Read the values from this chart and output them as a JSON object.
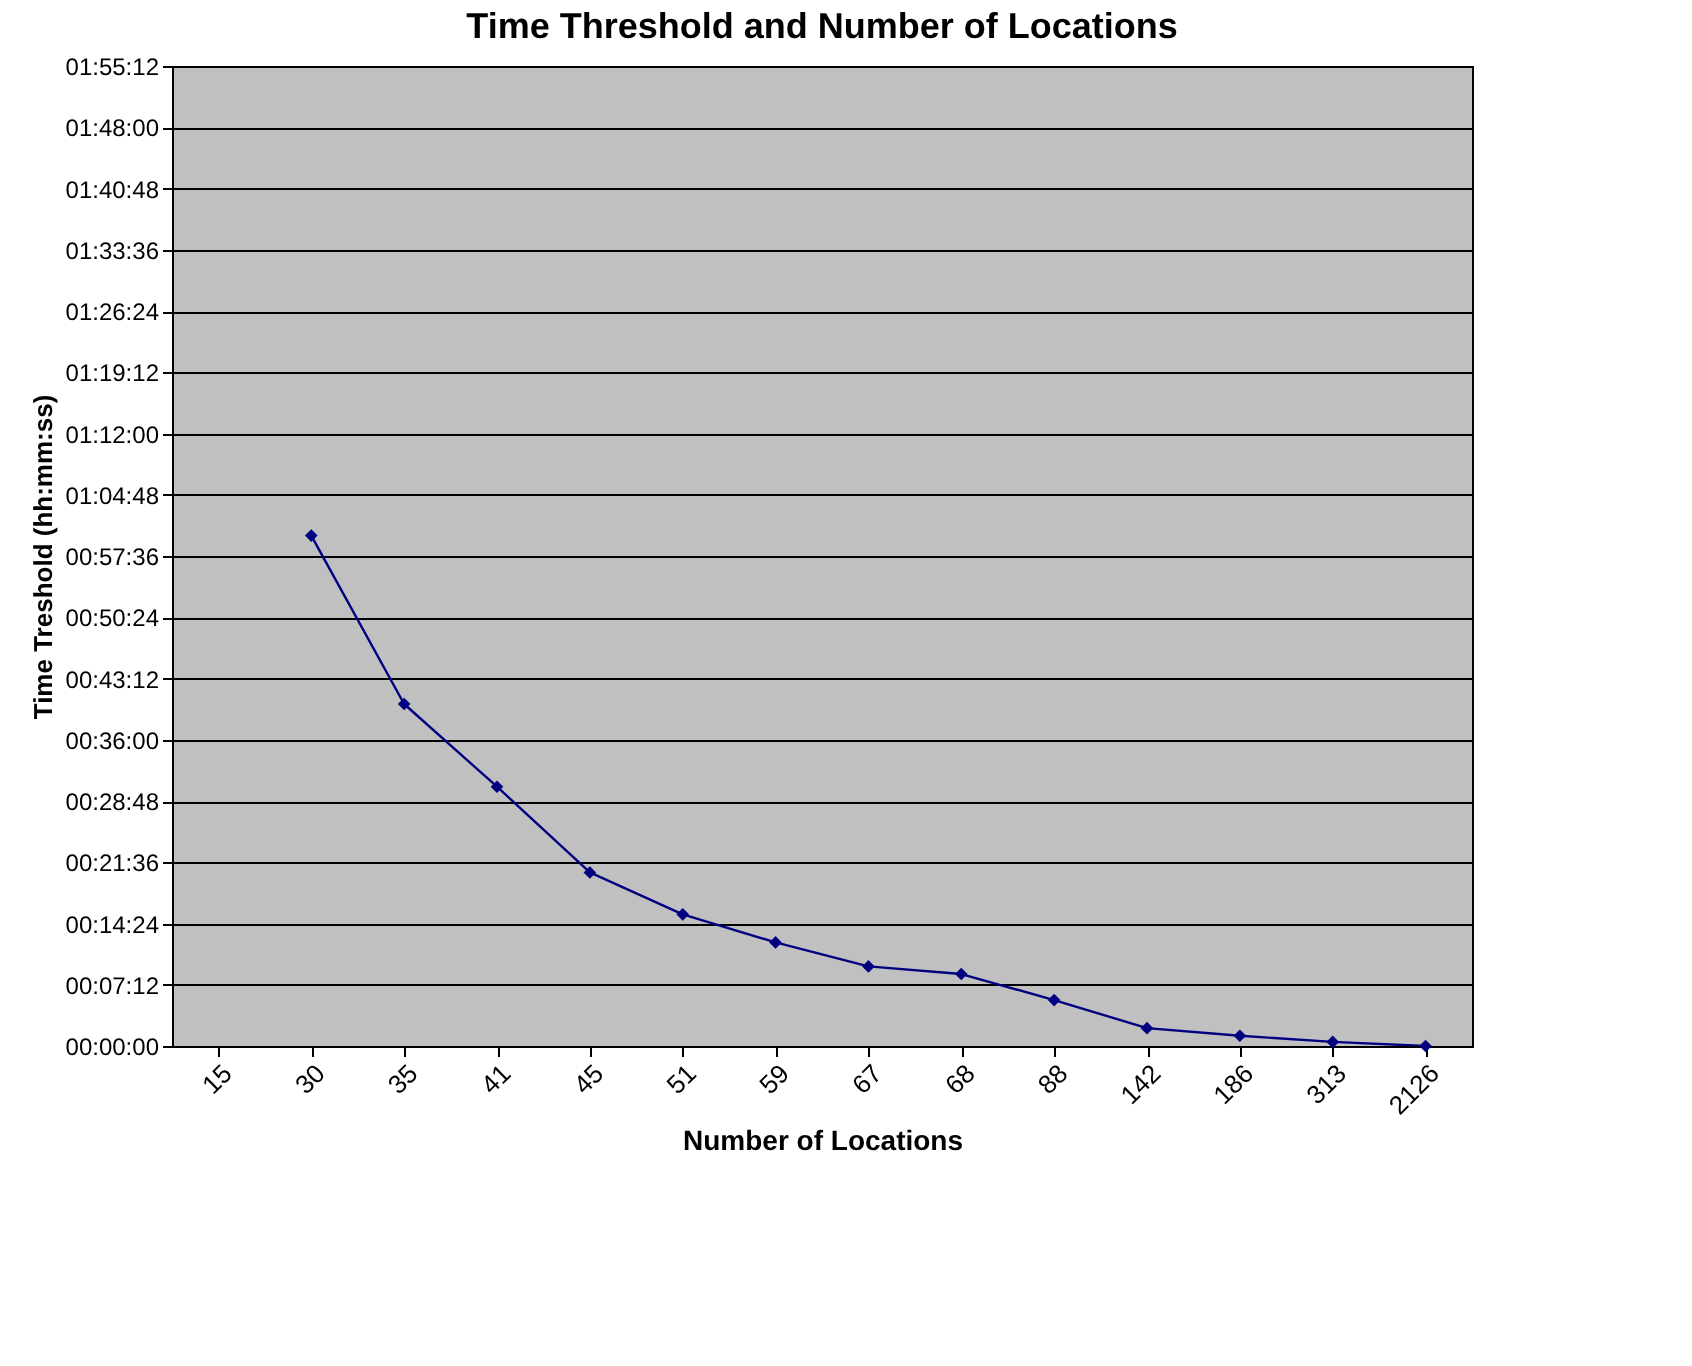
{
  "chart_data": {
    "type": "line",
    "title": "Time Threshold and Number of Locations",
    "xlabel": "Number of Locations",
    "ylabel": "Time Treshold (hh:mm:ss)",
    "categories": [
      "15",
      "30",
      "35",
      "41",
      "45",
      "51",
      "59",
      "67",
      "68",
      "88",
      "142",
      "186",
      "313",
      "2126"
    ],
    "series": [
      {
        "color": "#000080",
        "values": [
          null,
          1.0,
          0.67,
          0.508,
          0.34,
          0.258,
          0.203,
          0.156,
          0.141,
          0.09,
          0.035,
          0.02,
          0.008,
          0.0
        ]
      }
    ],
    "ylim": [
      0,
      1.92
    ],
    "yticks": [
      {
        "value": 0,
        "label": "00:00:00"
      },
      {
        "value": 0.12,
        "label": "00:07:12"
      },
      {
        "value": 0.24,
        "label": "00:14:24"
      },
      {
        "value": 0.36,
        "label": "00:21:36"
      },
      {
        "value": 0.48,
        "label": "00:28:48"
      },
      {
        "value": 0.6,
        "label": "00:36:00"
      },
      {
        "value": 0.72,
        "label": "00:43:12"
      },
      {
        "value": 0.84,
        "label": "00:50:24"
      },
      {
        "value": 0.96,
        "label": "00:57:36"
      },
      {
        "value": 1.08,
        "label": "01:04:48"
      },
      {
        "value": 1.2,
        "label": "01:12:00"
      },
      {
        "value": 1.32,
        "label": "01:19:12"
      },
      {
        "value": 1.44,
        "label": "01:26:24"
      },
      {
        "value": 1.56,
        "label": "01:33:36"
      },
      {
        "value": 1.68,
        "label": "01:40:48"
      },
      {
        "value": 1.8,
        "label": "01:48:00"
      },
      {
        "value": 1.92,
        "label": "01:55:12"
      }
    ],
    "grid": "y",
    "marker": "diamond",
    "line_style": "solid"
  }
}
